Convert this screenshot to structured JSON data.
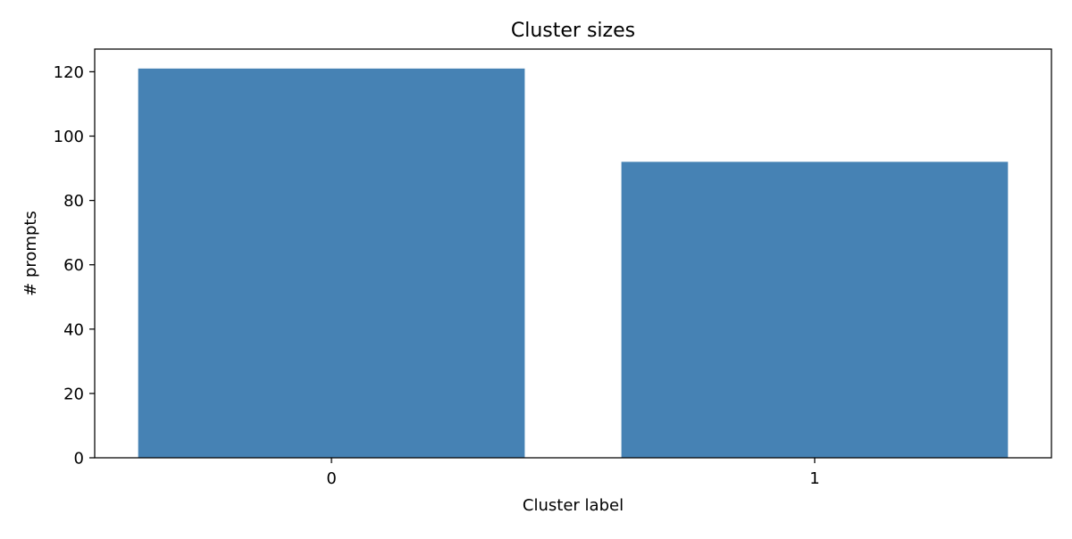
{
  "chart_data": {
    "type": "bar",
    "title": "Cluster sizes",
    "xlabel": "Cluster label",
    "ylabel": "# prompts",
    "categories": [
      "0",
      "1"
    ],
    "values": [
      121,
      92
    ],
    "ylim": [
      0,
      127.05
    ],
    "xlim": [
      -0.49,
      1.49
    ],
    "yticks": [
      0,
      20,
      40,
      60,
      80,
      100,
      120
    ],
    "grid": false,
    "bar_color": "#4682b4"
  }
}
